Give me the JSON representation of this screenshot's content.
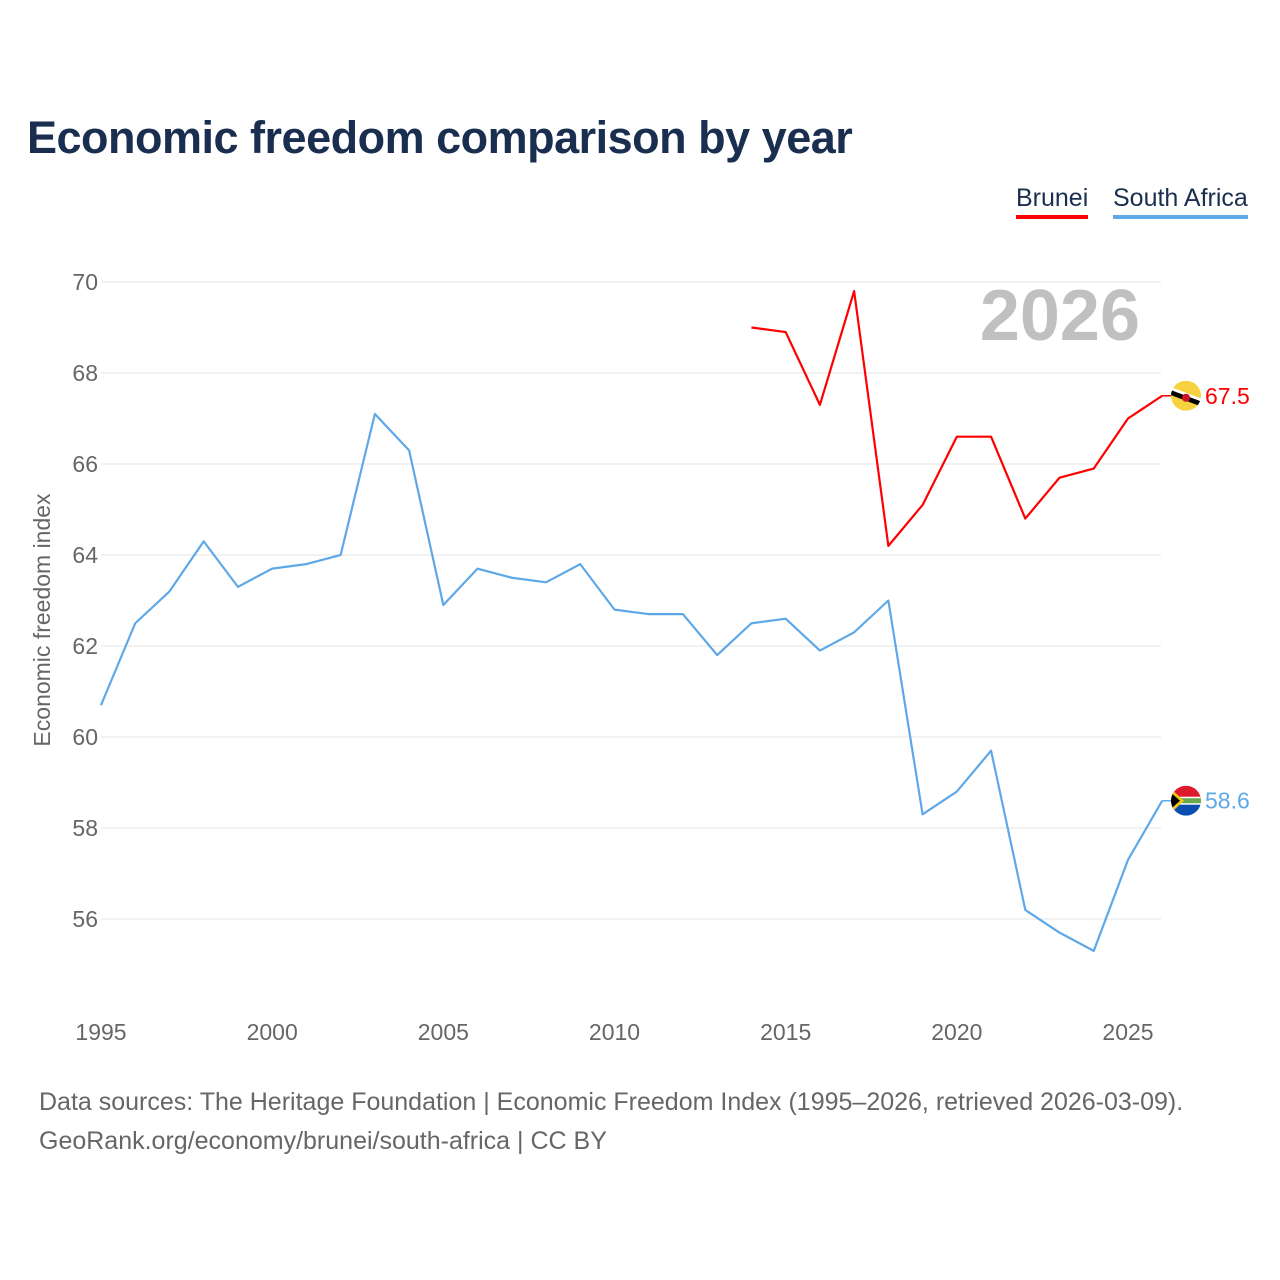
{
  "chart_data": {
    "type": "line",
    "title": "Economic freedom comparison by year",
    "ylabel": "Economic freedom index",
    "xlabel": "",
    "ylim": [
      54,
      70
    ],
    "xlim": [
      1995,
      2026
    ],
    "yticks": [
      56,
      58,
      60,
      62,
      64,
      66,
      68,
      70
    ],
    "xticks": [
      1995,
      2000,
      2005,
      2010,
      2015,
      2020,
      2025
    ],
    "grid": true,
    "legend_position": "top-right",
    "year_label": "2026",
    "series": [
      {
        "name": "Brunei",
        "color": "#ff0000",
        "end_label": "67.5",
        "x": [
          2014,
          2015,
          2016,
          2017,
          2018,
          2019,
          2020,
          2021,
          2022,
          2023,
          2024,
          2025,
          2026
        ],
        "values": [
          69.0,
          68.9,
          67.3,
          69.8,
          64.2,
          65.1,
          66.6,
          66.6,
          64.8,
          65.7,
          65.9,
          67.0,
          67.5
        ]
      },
      {
        "name": "South Africa",
        "color": "#5fa8e8",
        "end_label": "58.6",
        "x": [
          1995,
          1996,
          1997,
          1998,
          1999,
          2000,
          2001,
          2002,
          2003,
          2004,
          2005,
          2006,
          2007,
          2008,
          2009,
          2010,
          2011,
          2012,
          2013,
          2014,
          2015,
          2016,
          2017,
          2018,
          2019,
          2020,
          2021,
          2022,
          2023,
          2024,
          2025,
          2026
        ],
        "values": [
          60.7,
          62.5,
          63.2,
          64.3,
          63.3,
          63.7,
          63.8,
          64.0,
          67.1,
          66.3,
          62.9,
          63.7,
          63.5,
          63.4,
          63.8,
          62.8,
          62.7,
          62.7,
          61.8,
          62.5,
          62.6,
          61.9,
          62.3,
          63.0,
          58.3,
          58.8,
          59.7,
          56.2,
          55.7,
          55.3,
          57.3,
          58.6
        ]
      }
    ]
  },
  "footer": {
    "line1": "Data sources: The Heritage Foundation | Economic Freedom Index (1995–2026, retrieved 2026-03-09).",
    "line2": "GeoRank.org/economy/brunei/south-africa | CC BY"
  }
}
